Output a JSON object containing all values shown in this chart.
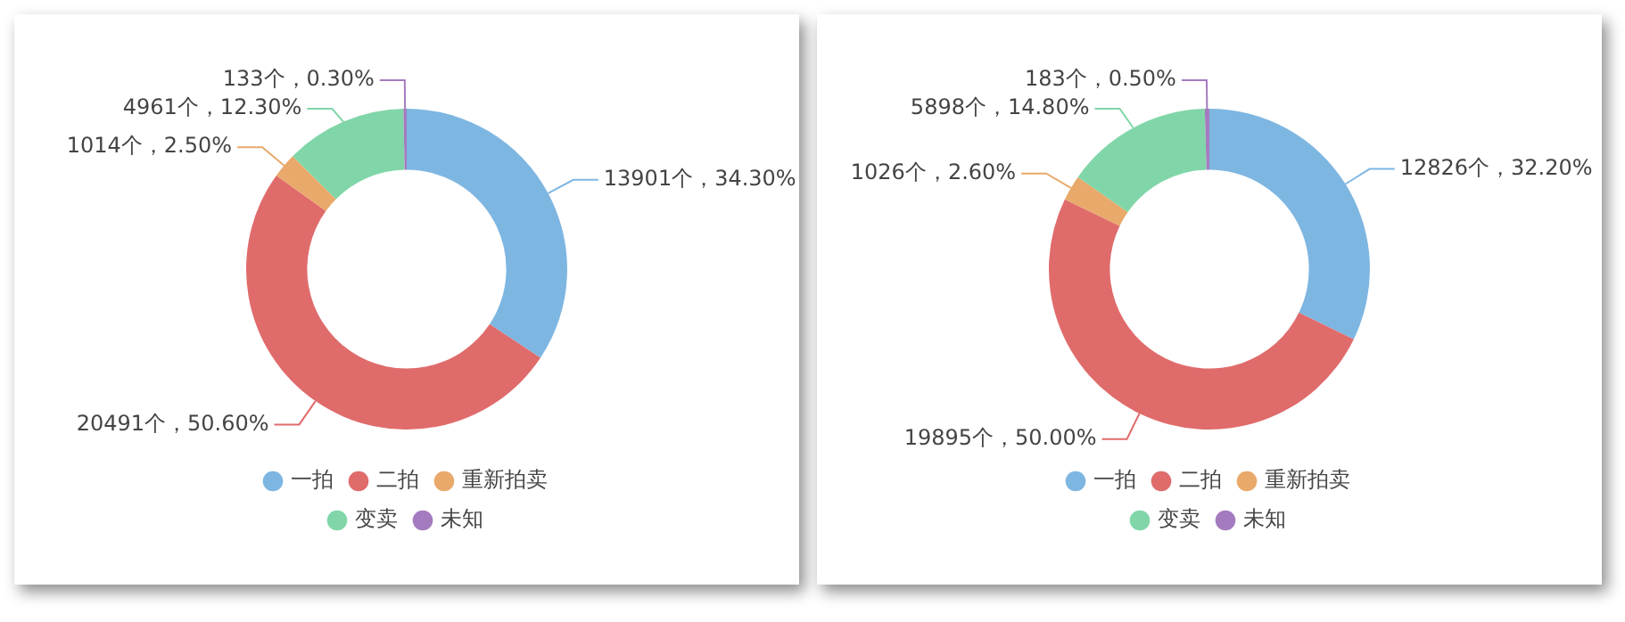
{
  "chart_data": [
    {
      "type": "donut",
      "categories": [
        "一拍",
        "二拍",
        "重新拍卖",
        "变卖",
        "未知"
      ],
      "values": [
        13901,
        20491,
        1014,
        4961,
        133
      ],
      "colors": [
        "#7eb6e2",
        "#e06b6b",
        "#e8a96b",
        "#80d6a8",
        "#a47bbf"
      ],
      "value_labels": [
        "13901个，34.30%",
        "20491个，50.60%",
        "1014个，2.50%",
        "4961个，12.30%",
        "133个，0.30%"
      ],
      "legend": "bottom"
    },
    {
      "type": "donut",
      "categories": [
        "一拍",
        "二拍",
        "重新拍卖",
        "变卖",
        "未知"
      ],
      "values": [
        12826,
        19895,
        1026,
        5898,
        183
      ],
      "colors": [
        "#7eb6e2",
        "#e06b6b",
        "#e8a96b",
        "#80d6a8",
        "#a47bbf"
      ],
      "value_labels": [
        "12826个，32.20%",
        "19895个，50.00%",
        "1026个，2.60%",
        "5898个，14.80%",
        "183个，0.50%"
      ],
      "legend": "bottom"
    }
  ]
}
